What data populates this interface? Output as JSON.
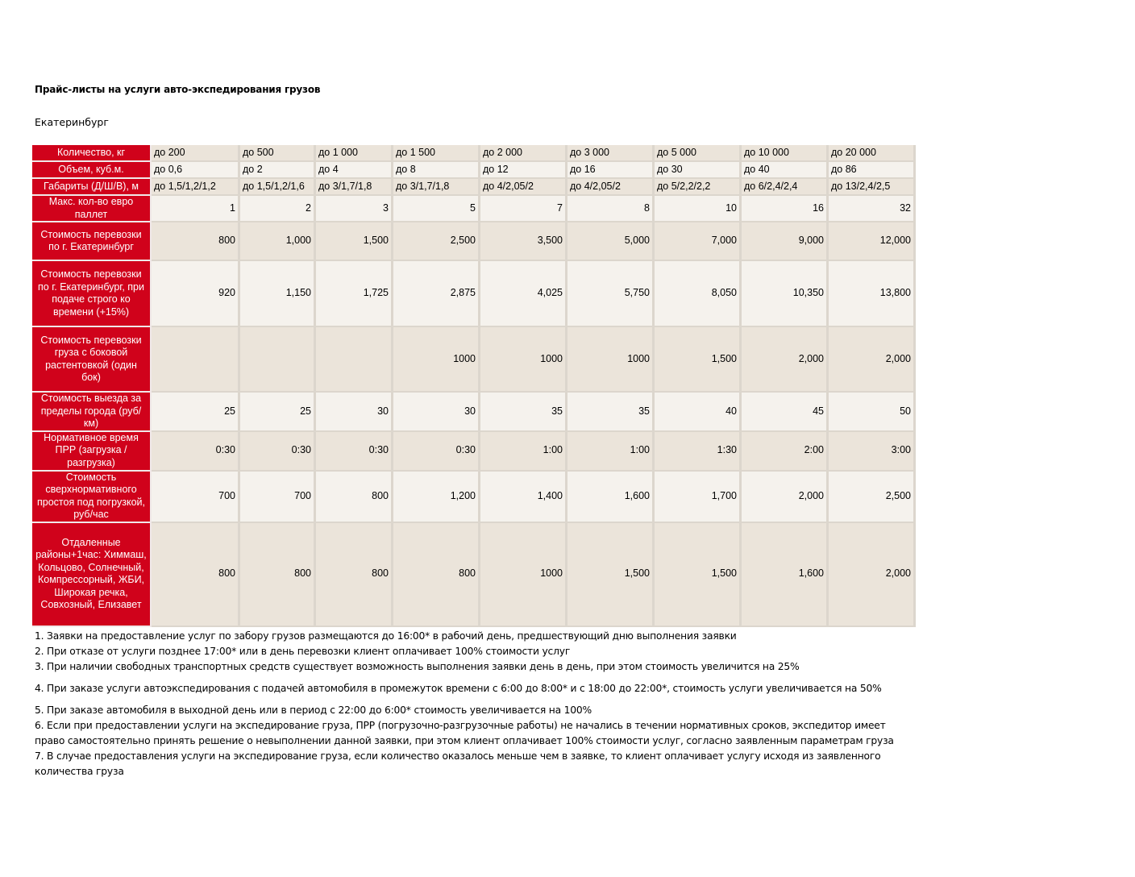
{
  "title": "Прайс-листы на услуги авто-экспедирования грузов",
  "city": "Екатеринбург",
  "table": {
    "rows": [
      {
        "label": "Количество, кг",
        "cells": [
          "до 200",
          "до 500",
          "до 1 000",
          "до 1 500",
          "до 2 000",
          "до 3 000",
          "до 5 000",
          "до 10 000",
          "до 20 000"
        ]
      },
      {
        "label": "Объем, куб.м.",
        "cells": [
          "до 0,6",
          "до 2",
          "до 4",
          "до 8",
          "до 12",
          "до 16",
          "до 30",
          "до 40",
          "до 86"
        ]
      },
      {
        "label": "Габариты (Д/Ш/В), м",
        "cells": [
          "до 1,5/1,2/1,2",
          "до 1,5/1,2/1,6",
          "до 3/1,7/1,8",
          "до 3/1,7/1,8",
          "до 4/2,05/2",
          "до 4/2,05/2",
          "до 5/2,2/2,2",
          "до 6/2,4/2,4",
          "до 13/2,4/2,5"
        ]
      },
      {
        "label": "Макс. кол-во евро паллет",
        "cells": [
          "1",
          "2",
          "3",
          "5",
          "7",
          "8",
          "10",
          "16",
          "32"
        ]
      },
      {
        "label": "Стоимость перевозки по г. Екатеринбург",
        "cells": [
          "800",
          "1,000",
          "1,500",
          "2,500",
          "3,500",
          "5,000",
          "7,000",
          "9,000",
          "12,000"
        ]
      },
      {
        "label": "Стоимость перевозки по г. Екатеринбург, при подаче строго ко времени (+15%)",
        "cells": [
          "920",
          "1,150",
          "1,725",
          "2,875",
          "4,025",
          "5,750",
          "8,050",
          "10,350",
          "13,800"
        ]
      },
      {
        "label": "Стоимость перевозки груза с боковой растентовкой (один бок)",
        "cells": [
          "",
          "",
          "",
          "1000",
          "1000",
          "1000",
          "1,500",
          "2,000",
          "2,000"
        ]
      },
      {
        "label": "Стоимость выезда за пределы города (руб/км)",
        "cells": [
          "25",
          "25",
          "30",
          "30",
          "35",
          "35",
          "40",
          "45",
          "50"
        ]
      },
      {
        "label": "Нормативное время ПРР (загрузка / разгрузка)",
        "cells": [
          "0:30",
          "0:30",
          "0:30",
          "0:30",
          "1:00",
          "1:00",
          "1:30",
          "2:00",
          "3:00"
        ]
      },
      {
        "label": "Стоимость сверхнормативного простоя под погрузкой, руб/час",
        "cells": [
          "700",
          "700",
          "800",
          "1,200",
          "1,400",
          "1,600",
          "1,700",
          "2,000",
          "2,500"
        ]
      },
      {
        "label": "Отдаленные районы+1час: Химмаш, Кольцово, Солнечный, Компрессорный, ЖБИ, Широкая речка, Совхозный, Елизавет",
        "cells": [
          "800",
          "800",
          "800",
          "800",
          "1000",
          "1,500",
          "1,500",
          "1,600",
          "2,000"
        ]
      }
    ]
  },
  "notes": [
    "1. Заявки на предоставление услуг по забору грузов размещаются до 16:00* в рабочий день, предшествующий дню выполнения заявки",
    "2. При отказе от услуги позднее 17:00* или в день перевозки клиент оплачивает 100% стоимости услуг",
    "3. При наличии свободных транспортных средств существует возможность выполнения заявки день в день, при этом стоимость увеличится на 25%",
    "4. При заказе услуги автоэкспедирования с подачей автомобиля в промежуток времени с 6:00 до 8:00* и с 18:00 до 22:00*, стоимость услуги увеличивается на 50%",
    "5. При заказе автомобиля в выходной день или в период с 22:00 до 6:00* стоимость увеличивается на 100%",
    "6. Если при предоставлении услуги на экспедирование груза, ПРР (погрузочно-разгрузочные работы) не начались в течении нормативных сроков, экспедитор имеет",
    "право самостоятельно принять решение о невыполнении данной заявки, при этом клиент оплачивает 100% стоимости услуг, согласно заявленным параметрам груза",
    "7. В случае предоставления услуги на экспедирование груза, если количество оказалось меньше чем в заявке, то клиент оплачивает услугу исходя из заявленного",
    "количества груза"
  ]
}
